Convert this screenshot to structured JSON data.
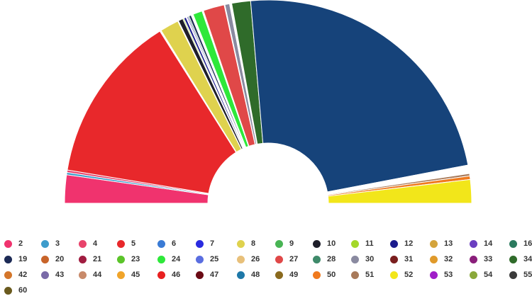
{
  "chart_data": {
    "type": "pie",
    "subtype": "semicircle-parliament",
    "title": "",
    "legend_position": "bottom",
    "series": [
      {
        "name": "2",
        "value": 12,
        "color": "#f0336e"
      },
      {
        "name": "3",
        "value": 1,
        "color": "#3d9ccb"
      },
      {
        "name": "4",
        "value": 1,
        "color": "#e8436b"
      },
      {
        "name": "5",
        "value": 72,
        "color": "#e8282b"
      },
      {
        "name": "6",
        "value": 0.3,
        "color": "#3a7bd5"
      },
      {
        "name": "7",
        "value": 0.3,
        "color": "#2a2be0"
      },
      {
        "name": "8",
        "value": 8,
        "color": "#dfd24e"
      },
      {
        "name": "9",
        "value": 0.3,
        "color": "#48b454"
      },
      {
        "name": "10",
        "value": 2,
        "color": "#1e1e2a"
      },
      {
        "name": "11",
        "value": 0.5,
        "color": "#a4d82a"
      },
      {
        "name": "12",
        "value": 1,
        "color": "#1a1a8c"
      },
      {
        "name": "13",
        "value": 0.3,
        "color": "#d4a43c"
      },
      {
        "name": "14",
        "value": 0.5,
        "color": "#6a3ec0"
      },
      {
        "name": "16",
        "value": 0.5,
        "color": "#2b7a5e"
      },
      {
        "name": "19",
        "value": 1,
        "color": "#1c2a55"
      },
      {
        "name": "20",
        "value": 0.3,
        "color": "#c8642a"
      },
      {
        "name": "21",
        "value": 0.3,
        "color": "#a01c40"
      },
      {
        "name": "23",
        "value": 0.3,
        "color": "#5bc42a"
      },
      {
        "name": "24",
        "value": 4,
        "color": "#2ee83a"
      },
      {
        "name": "25",
        "value": 0.3,
        "color": "#5a6ee0"
      },
      {
        "name": "26",
        "value": 0.3,
        "color": "#e8c07a"
      },
      {
        "name": "27",
        "value": 9,
        "color": "#e04848"
      },
      {
        "name": "28",
        "value": 0.3,
        "color": "#3e8a6a"
      },
      {
        "name": "30",
        "value": 2,
        "color": "#8a8aa0"
      },
      {
        "name": "31",
        "value": 0.3,
        "color": "#7a1e1e"
      },
      {
        "name": "32",
        "value": 0.3,
        "color": "#e09a2a"
      },
      {
        "name": "33",
        "value": 0.3,
        "color": "#8a1e7a"
      },
      {
        "name": "34",
        "value": 8,
        "color": "#2f6b2a"
      },
      {
        "name": "42",
        "value": 0.3,
        "color": "#d4762a"
      },
      {
        "name": "43",
        "value": 0.3,
        "color": "#7a6aa8"
      },
      {
        "name": "44",
        "value": 0.3,
        "color": "#c88a6a"
      },
      {
        "name": "45",
        "value": 0.3,
        "color": "#f0a42a"
      },
      {
        "name": "46",
        "value": 0.3,
        "color": "#e82020"
      },
      {
        "name": "47",
        "value": 0.3,
        "color": "#6a0a14"
      },
      {
        "name": "48",
        "value": 0.3,
        "color": "#1e78a8"
      },
      {
        "name": "49",
        "value": 0.3,
        "color": "#8a6a1e"
      },
      {
        "name": "50",
        "value": 1.5,
        "color": "#f07a1e"
      },
      {
        "name": "51",
        "value": 1,
        "color": "#a87a5a"
      },
      {
        "name": "52",
        "value": 10,
        "color": "#f2e61a"
      },
      {
        "name": "53",
        "value": 0.3,
        "color": "#a01ec8"
      },
      {
        "name": "54",
        "value": 0.3,
        "color": "#8aa83a"
      },
      {
        "name": "55",
        "value": 0.3,
        "color": "#3a3a3a"
      },
      {
        "name": "60",
        "value": 0.3,
        "color": "#6a5a1e"
      }
    ],
    "render_order": [
      "2",
      "3",
      "4",
      "5",
      "6",
      "7",
      "8",
      "9",
      "10",
      "11",
      "12",
      "13",
      "14",
      "16",
      "19",
      "20",
      "21",
      "23",
      "24",
      "25",
      "26",
      "27",
      "28",
      "30",
      "31",
      "32",
      "33",
      "34",
      "42",
      "43",
      "44",
      "45",
      "46",
      "47",
      "48",
      "49",
      "60",
      "55",
      "54",
      "53",
      "51",
      "50",
      "52"
    ],
    "render_extra": [
      {
        "after": "34",
        "name": "19",
        "value": 125,
        "color": "#16437a"
      }
    ]
  }
}
